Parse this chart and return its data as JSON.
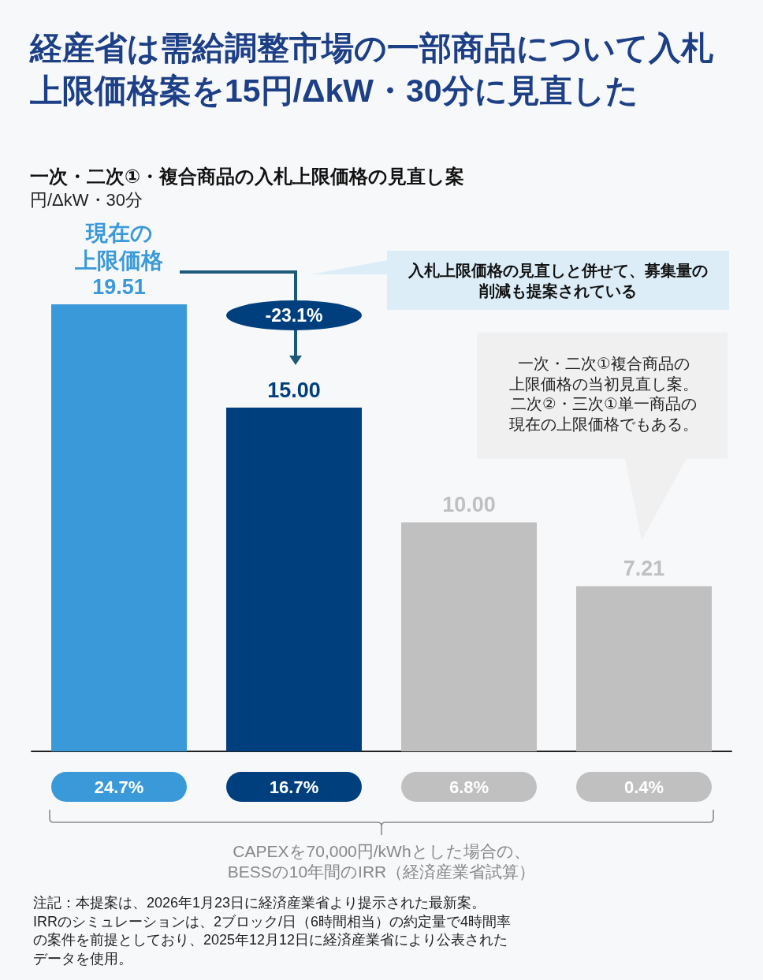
{
  "chart_data": {
    "type": "bar",
    "title": "経産省は需給調整市場の一部商品について入札上限価格案を15円/ΔkW・30分に見直した",
    "subtitle": "一次・二次①・複合商品の入札上限価格の見直し案",
    "xlabel": "CAPEXを70,000円/kWhとした場合の、BESSの10年間のIRR（経済産業省試算）",
    "categories": [
      "24.7%",
      "16.7%",
      "6.8%",
      "0.4%"
    ],
    "values": [
      19.51,
      15.0,
      10.0,
      7.21
    ],
    "colors": [
      "#3a99d8",
      "#003f7e",
      "#c0c0c0",
      "#c0c0c0"
    ],
    "value_labels": [
      "19.51",
      "15.00",
      "10.00",
      "7.21"
    ],
    "annotations": [
      "円/ΔkW・30分",
      {
        "text": "現在の上限価格",
        "x": "24.7%",
        "y": 19.51
      },
      "-23.1%",
      "入札上限価格の見直しと併せて、募集量の削減も提案されている",
      "一次・二次①複合商品の上限価格の当初見直し案。二次②・三次①単一商品の現在の上限価格でもある。",
      "注記：本提案は、2026年1月23日に経済産業省より提示された最新案。",
      "IRRのシミュレーションは、2ブロック/日（6時間相当）の約定量で4時間率の案件を前提としており、2025年12月12日に経済産業省により公表されたデータを使用。"
    ]
  }
}
